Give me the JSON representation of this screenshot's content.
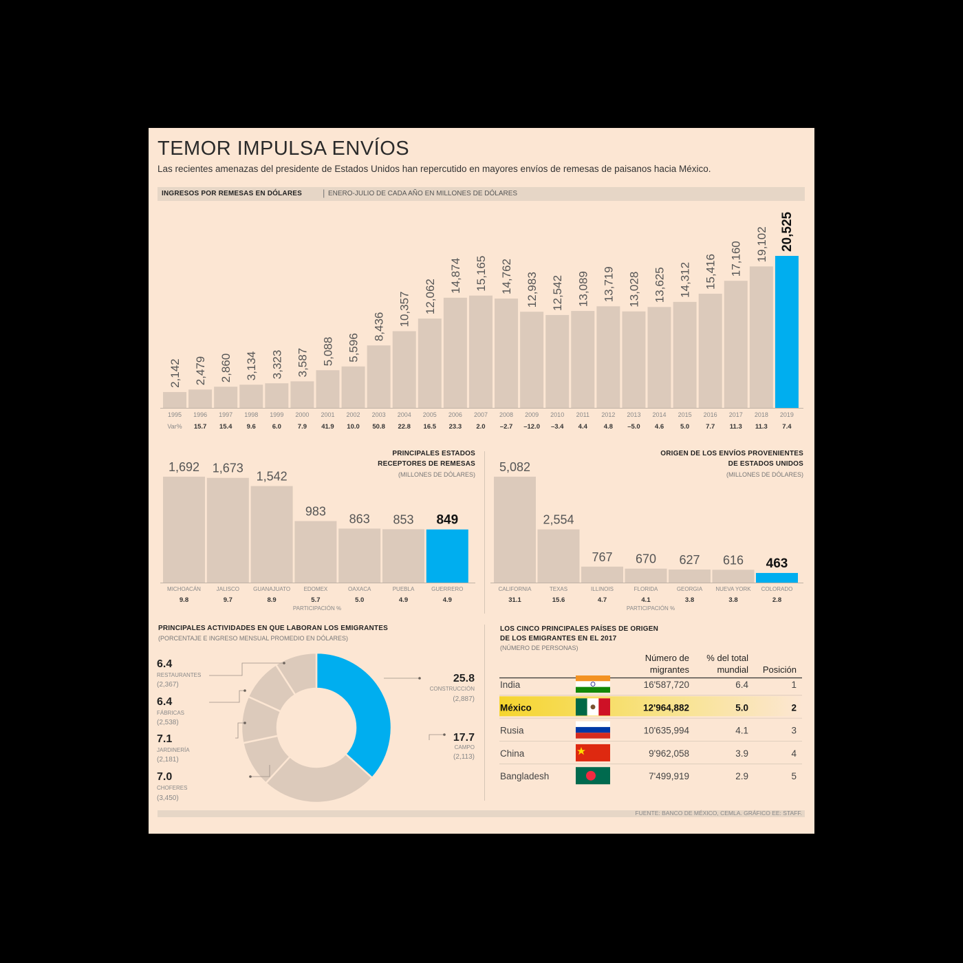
{
  "title": "TEMOR IMPULSA ENVÍOS",
  "subtitle": "Las recientes amenazas del presidente de Estados Unidos han repercutido en mayores envíos de remesas de paisanos hacia México.",
  "section1": {
    "strong": "INGRESOS POR REMESAS EN DÓLARES",
    "sep": "|",
    "light": "ENERO-JULIO DE CADA AÑO EN MILLONES DE DÓLARES"
  },
  "colors": {
    "bar": "#dccabb",
    "highlight": "#00aeef",
    "background": "#fce6d3",
    "band": "#e6d6c6",
    "table_highlight": "#f5d52d"
  },
  "chart_data": [
    {
      "type": "bar",
      "categories": [
        "1995",
        "1996",
        "1997",
        "1998",
        "1999",
        "2000",
        "2001",
        "2002",
        "2003",
        "2004",
        "2005",
        "2006",
        "2007",
        "2008",
        "2009",
        "2010",
        "2011",
        "2012",
        "2013",
        "2014",
        "2015",
        "2016",
        "2017",
        "2018",
        "2019"
      ],
      "values": [
        2142,
        2479,
        2860,
        3134,
        3323,
        3587,
        5088,
        5596,
        8436,
        10357,
        12062,
        14874,
        15165,
        14762,
        12983,
        12542,
        13089,
        13719,
        13028,
        13625,
        14312,
        15416,
        17160,
        19102,
        20525
      ],
      "labels": [
        "2,142",
        "2,479",
        "2,860",
        "3,134",
        "3,323",
        "3,587",
        "5,088",
        "5,596",
        "8,436",
        "10,357",
        "12,062",
        "14,874",
        "15,165",
        "14,762",
        "12,983",
        "12,542",
        "13,089",
        "13,719",
        "13,028",
        "13,625",
        "14,312",
        "15,416",
        "17,160",
        "19,102",
        "20,525"
      ],
      "var_label": "Var%",
      "var": [
        "15.7",
        "15.4",
        "9.6",
        "6.0",
        "7.9",
        "41.9",
        "10.0",
        "50.8",
        "22.8",
        "16.5",
        "23.3",
        "2.0",
        "–2.7",
        "–12.0",
        "–3.4",
        "4.4",
        "4.8",
        "–5.0",
        "4.6",
        "5.0",
        "7.7",
        "11.3",
        "11.3",
        "7.4"
      ],
      "highlight_index": 24
    },
    {
      "type": "bar",
      "title": [
        "PRINCIPALES ESTADOS",
        "RECEPTORES DE REMESAS"
      ],
      "unit": "(MILLONES DE DÓLARES)",
      "categories": [
        "MICHOACÁN",
        "JALISCO",
        "GUANAJUATO",
        "EDOMEX",
        "OAXACA",
        "PUEBLA",
        "GUERRERO"
      ],
      "values": [
        1692,
        1673,
        1542,
        983,
        863,
        853,
        849
      ],
      "labels": [
        "1,692",
        "1,673",
        "1,542",
        "983",
        "863",
        "853",
        "849"
      ],
      "participation": [
        "9.8",
        "9.7",
        "8.9",
        "5.7",
        "5.0",
        "4.9",
        "4.9"
      ],
      "participation_label": "PARTICIPACIÓN %",
      "highlight_index": 6
    },
    {
      "type": "bar",
      "title": [
        "ORIGEN DE LOS ENVÍOS PROVENIENTES",
        "DE ESTADOS UNIDOS"
      ],
      "unit": "(MILLONES DE DÓLARES)",
      "categories": [
        "CALIFORNIA",
        "TEXAS",
        "ILLINOIS",
        "FLORIDA",
        "GEORGIA",
        "NUEVA YORK",
        "COLORADO"
      ],
      "values": [
        5082,
        2554,
        767,
        670,
        627,
        616,
        463
      ],
      "labels": [
        "5,082",
        "2,554",
        "767",
        "670",
        "627",
        "616",
        "463"
      ],
      "participation": [
        "31.1",
        "15.6",
        "4.7",
        "4.1",
        "3.8",
        "3.8",
        "2.8"
      ],
      "participation_label": "PARTICIPACIÓN %",
      "highlight_index": 6
    },
    {
      "type": "pie",
      "title": "PRINCIPALES ACTIVIDADES EN QUE LABORAN LOS EMIGRANTES",
      "unit": "(PORCENTAJE E INGRESO MENSUAL PROMEDIO EN DÓLARES)",
      "slices": [
        {
          "name": "CONSTRUCCIÓN",
          "value": 25.8,
          "value_label": "25.8",
          "income": "(2,887)"
        },
        {
          "name": "CAMPO",
          "value": 17.7,
          "value_label": "17.7",
          "income": "(2,113)"
        },
        {
          "name": "CHOFERES",
          "value": 7.0,
          "value_label": "7.0",
          "income": "(3,450)"
        },
        {
          "name": "JARDINERÍA",
          "value": 7.1,
          "value_label": "7.1",
          "income": "(2,181)"
        },
        {
          "name": "FÁBRICAS",
          "value": 6.4,
          "value_label": "6.4",
          "income": "(2,538)"
        },
        {
          "name": "RESTAURANTES",
          "value": 6.4,
          "value_label": "6.4",
          "income": "(2,367)"
        }
      ]
    },
    {
      "type": "table",
      "title": [
        "LOS CINCO PRINCIPALES PAÍSES DE ORIGEN",
        "DE LOS EMIGRANTES EN EL 2017"
      ],
      "unit": "(NÚMERO DE PERSONAS)",
      "columns": [
        [
          "Número de",
          "migrantes"
        ],
        [
          "% del total",
          "mundial"
        ],
        [
          "Posición"
        ]
      ],
      "rows": [
        {
          "country": "India",
          "migrants": "16'587,720",
          "pct": "6.4",
          "pos": "1",
          "flag": "india-flag-icon"
        },
        {
          "country": "México",
          "migrants": "12'964,882",
          "pct": "5.0",
          "pos": "2",
          "flag": "mexico-flag-icon"
        },
        {
          "country": "Rusia",
          "migrants": "10'635,994",
          "pct": "4.1",
          "pos": "3",
          "flag": "russia-flag-icon"
        },
        {
          "country": "China",
          "migrants": "9'962,058",
          "pct": "3.9",
          "pos": "4",
          "flag": "china-flag-icon"
        },
        {
          "country": "Bangladesh",
          "migrants": "7'499,919",
          "pct": "2.9",
          "pos": "5",
          "flag": "bangladesh-flag-icon"
        }
      ],
      "highlight_index": 1
    }
  ],
  "source": "FUENTE: BANCO DE MÉXICO, CEMLA. GRÁFICO EE: STAFF."
}
